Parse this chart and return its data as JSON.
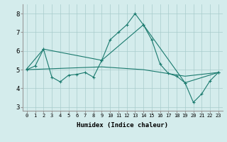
{
  "xlabel": "Humidex (Indice chaleur)",
  "background_color": "#d4ecec",
  "grid_color": "#a8cccc",
  "line_color": "#1a7a6e",
  "xlim": [
    -0.5,
    23.5
  ],
  "ylim": [
    2.8,
    8.5
  ],
  "xticks": [
    0,
    1,
    2,
    3,
    4,
    5,
    6,
    7,
    8,
    9,
    10,
    11,
    12,
    13,
    14,
    15,
    16,
    17,
    18,
    19,
    20,
    21,
    22,
    23
  ],
  "yticks": [
    3,
    4,
    5,
    6,
    7,
    8
  ],
  "series1_x": [
    0,
    1,
    2,
    3,
    4,
    5,
    6,
    7,
    8,
    9,
    10,
    11,
    12,
    13,
    14,
    15,
    16,
    17,
    18,
    19,
    20,
    21,
    22,
    23
  ],
  "series1_y": [
    5.0,
    5.2,
    6.1,
    4.6,
    4.35,
    4.7,
    4.75,
    4.85,
    4.6,
    5.5,
    6.6,
    7.0,
    7.4,
    8.0,
    7.4,
    6.6,
    5.3,
    4.8,
    4.65,
    4.3,
    3.25,
    3.7,
    4.4,
    4.85
  ],
  "series2_x": [
    0,
    2,
    9,
    14,
    19,
    23
  ],
  "series2_y": [
    5.05,
    6.1,
    5.5,
    7.4,
    4.3,
    4.85
  ],
  "series3_x": [
    0,
    9,
    14,
    19,
    23
  ],
  "series3_y": [
    5.0,
    5.15,
    5.0,
    4.65,
    4.85
  ]
}
